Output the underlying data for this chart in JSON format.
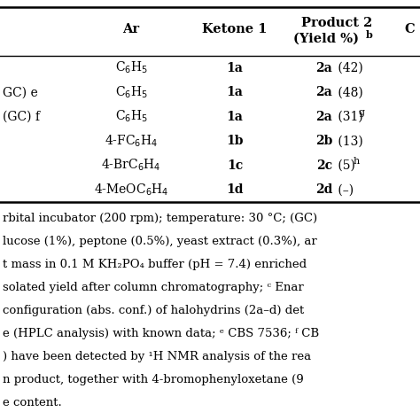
{
  "header": {
    "ar": "Ar",
    "ketone": "Ketone 1",
    "product_line1": "Product 2",
    "product_line2": "(Yield %)",
    "product_sup": "b",
    "c_col": "C"
  },
  "left_texts": [
    "",
    "GC) e",
    "(GC) f",
    "",
    "",
    ""
  ],
  "ar_col": [
    "C$_6$H$_5$",
    "C$_6$H$_5$",
    "C$_6$H$_5$",
    "4-FC$_6$H$_4$",
    "4-BrC$_6$H$_4$",
    "4-MeOC$_6$H$_4$"
  ],
  "ketone_col": [
    "1a",
    "1a",
    "1a",
    "1b",
    "1c",
    "1d"
  ],
  "product_bold": [
    "2a",
    "2a",
    "2a",
    "2b",
    "2c",
    "2d"
  ],
  "product_normal": [
    " (42)",
    " (48)",
    " (31)",
    " (13)",
    " (5)",
    " (–)"
  ],
  "product_sup": [
    "",
    "",
    "g",
    "",
    "h",
    ""
  ],
  "footnote_lines": [
    "rbital incubator (200 rpm); temperature: 30 °C; (GC)",
    "lucose (1%), peptone (0.5%), yeast extract (0.3%), ar",
    "t mass in 0.1 M KH$_2$PO$_4$ buffer (pH = 7.4) enriched",
    "solated yield after column chromatography; $^c$ Enar",
    "configuration (abs. conf.) of halohydrins (’\u00172a–d) det",
    "e (HPLC analysis) with known data; $^e$ CBS 7536; $^f$ CB",
    ") have been detected by $^1$H NMR analysis of the rea",
    "n product, together with 4-bromophenyloxetane (9",
    "e content."
  ],
  "footnote_plain": [
    "rbital incubator (200 rpm); temperature: 30 °C; (GC)",
    "lucose (1%), peptone (0.5%), yeast extract (0.3%), ar",
    "t mass in 0.1 M KH2PO4 buffer (pH = 7.4) enriched",
    "solated yield after column chromatography;  Enar",
    "configuration (abs. conf.) of halohydrins (2a–d) det",
    "e (HPLC analysis) with known data;  CBS 7536;  CB",
    ") have been detected by H NMR analysis of the rea",
    "n product, together with 4-bromophenyloxetane (9",
    "e content."
  ],
  "background_color": "#ffffff",
  "text_color": "#000000"
}
